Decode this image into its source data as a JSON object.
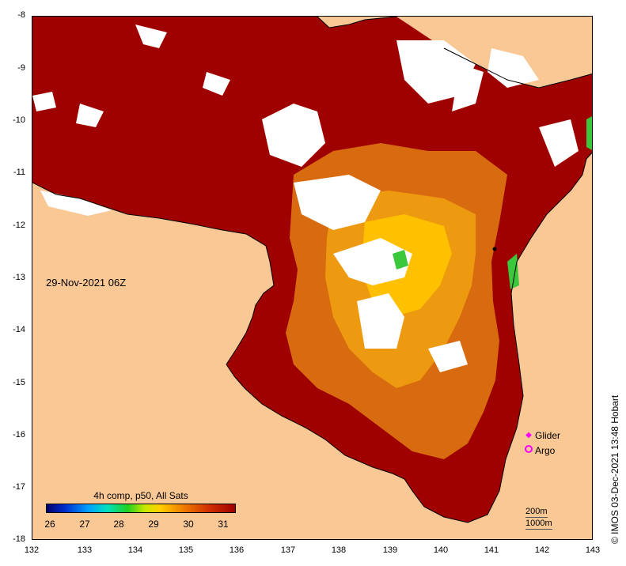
{
  "map": {
    "date_label": "29-Nov-2021 06Z",
    "y_ticks": [
      "-8",
      "-9",
      "-10",
      "-11",
      "-12",
      "-13",
      "-14",
      "-15",
      "-16",
      "-17",
      "-18"
    ],
    "x_ticks": [
      "132",
      "133",
      "134",
      "135",
      "136",
      "137",
      "138",
      "139",
      "140",
      "141",
      "142",
      "143"
    ],
    "lon_range": [
      132,
      143
    ],
    "lat_range": [
      -18,
      -8
    ],
    "colors": {
      "land": "#f9c895",
      "warm": "#9f0000",
      "cloud": "#ffffff"
    }
  },
  "legend": {
    "glider": "Glider",
    "argo": "Argo"
  },
  "colorbar": {
    "title": "4h comp, p50, All Sats",
    "ticks": [
      "26",
      "27",
      "28",
      "29",
      "30",
      "31"
    ],
    "range": [
      25.8,
      31.5
    ]
  },
  "depth": {
    "a": "200m",
    "b": "1000m"
  },
  "credit": "© IMOS 03-Dec-2021 13:48 Hobart"
}
